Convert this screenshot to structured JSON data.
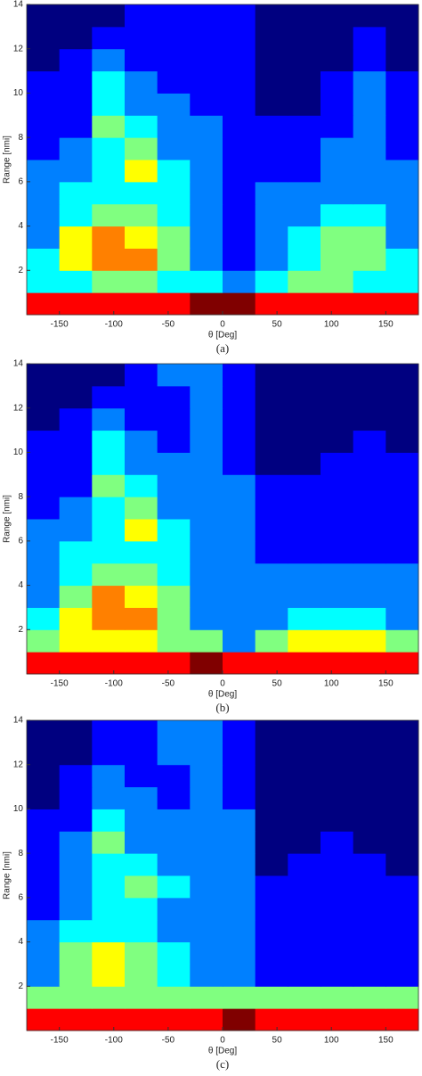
{
  "chart_data": [
    {
      "type": "heatmap",
      "caption": "(a)",
      "xlabel": "θ [Deg]",
      "ylabel": "Range [nmi]",
      "colormap": "jet",
      "xlim": [
        -180,
        180
      ],
      "ylim": [
        0,
        14
      ],
      "xticks": [
        -150,
        -100,
        -50,
        0,
        50,
        100,
        150
      ],
      "yticks": [
        2,
        4,
        6,
        8,
        10,
        12,
        14
      ],
      "xbins": [
        -180,
        -150,
        -120,
        -90,
        -60,
        -30,
        0,
        30,
        60,
        90,
        120,
        150,
        180
      ],
      "ybins": [
        0,
        1,
        2,
        3,
        4,
        5,
        6,
        7,
        8,
        9,
        10,
        11,
        12,
        13,
        14
      ],
      "z": [
        [
          8,
          8,
          8,
          8,
          8,
          9,
          9,
          8,
          8,
          8,
          8,
          8
        ],
        [
          4,
          4,
          5,
          5,
          4,
          4,
          3,
          4,
          5,
          5,
          4,
          4
        ],
        [
          4,
          6,
          7,
          7,
          5,
          3,
          2,
          3,
          4,
          5,
          5,
          4
        ],
        [
          3,
          6,
          7,
          6,
          5,
          3,
          2,
          3,
          4,
          5,
          5,
          3
        ],
        [
          3,
          4,
          5,
          5,
          4,
          3,
          2,
          3,
          3,
          4,
          4,
          3
        ],
        [
          3,
          4,
          4,
          4,
          4,
          3,
          2,
          3,
          3,
          3,
          3,
          3
        ],
        [
          3,
          3,
          4,
          6,
          4,
          3,
          2,
          2,
          2,
          3,
          3,
          3
        ],
        [
          2,
          3,
          4,
          5,
          3,
          3,
          2,
          2,
          2,
          3,
          3,
          2
        ],
        [
          2,
          2,
          5,
          4,
          3,
          3,
          2,
          2,
          2,
          2,
          3,
          2
        ],
        [
          2,
          2,
          4,
          3,
          3,
          2,
          2,
          1,
          1,
          2,
          3,
          2
        ],
        [
          2,
          2,
          4,
          3,
          2,
          2,
          2,
          1,
          1,
          2,
          3,
          2
        ],
        [
          1,
          2,
          3,
          2,
          2,
          2,
          2,
          1,
          1,
          1,
          2,
          1
        ],
        [
          1,
          1,
          2,
          2,
          2,
          2,
          2,
          1,
          1,
          1,
          2,
          1
        ],
        [
          1,
          1,
          1,
          2,
          2,
          2,
          2,
          1,
          1,
          1,
          1,
          1
        ]
      ]
    },
    {
      "type": "heatmap",
      "caption": "(b)",
      "xlabel": "θ [Deg]",
      "ylabel": "Range [nmi]",
      "colormap": "jet",
      "xlim": [
        -180,
        180
      ],
      "ylim": [
        0,
        14
      ],
      "xticks": [
        -150,
        -100,
        -50,
        0,
        50,
        100,
        150
      ],
      "yticks": [
        2,
        4,
        6,
        8,
        10,
        12,
        14
      ],
      "xbins": [
        -180,
        -150,
        -120,
        -90,
        -60,
        -30,
        0,
        30,
        60,
        90,
        120,
        150,
        180
      ],
      "ybins": [
        0,
        1,
        2,
        3,
        4,
        5,
        6,
        7,
        8,
        9,
        10,
        11,
        12,
        13,
        14
      ],
      "z": [
        [
          8,
          8,
          8,
          8,
          8,
          9,
          8,
          8,
          8,
          8,
          8,
          8
        ],
        [
          5,
          6,
          6,
          6,
          5,
          5,
          3,
          5,
          6,
          6,
          6,
          5
        ],
        [
          4,
          6,
          7,
          7,
          5,
          3,
          3,
          3,
          4,
          4,
          4,
          3
        ],
        [
          3,
          5,
          7,
          6,
          5,
          3,
          3,
          3,
          3,
          3,
          3,
          3
        ],
        [
          3,
          4,
          5,
          5,
          4,
          3,
          3,
          3,
          3,
          3,
          3,
          3
        ],
        [
          3,
          4,
          4,
          4,
          4,
          3,
          3,
          2,
          2,
          2,
          2,
          2
        ],
        [
          3,
          3,
          4,
          6,
          4,
          3,
          3,
          2,
          2,
          2,
          2,
          2
        ],
        [
          2,
          3,
          4,
          5,
          3,
          3,
          3,
          2,
          2,
          2,
          2,
          2
        ],
        [
          2,
          2,
          5,
          4,
          3,
          3,
          3,
          2,
          2,
          2,
          2,
          2
        ],
        [
          2,
          2,
          4,
          3,
          3,
          3,
          2,
          1,
          1,
          2,
          2,
          2
        ],
        [
          2,
          2,
          4,
          3,
          2,
          3,
          2,
          1,
          1,
          1,
          2,
          1
        ],
        [
          1,
          2,
          3,
          2,
          2,
          3,
          2,
          1,
          1,
          1,
          1,
          1
        ],
        [
          1,
          1,
          2,
          2,
          2,
          3,
          2,
          1,
          1,
          1,
          1,
          1
        ],
        [
          1,
          1,
          1,
          2,
          3,
          3,
          2,
          1,
          1,
          1,
          1,
          1
        ]
      ]
    },
    {
      "type": "heatmap",
      "caption": "(c)",
      "xlabel": "θ [Deg]",
      "ylabel": "Range [nmi]",
      "colormap": "jet",
      "xlim": [
        -180,
        180
      ],
      "ylim": [
        0,
        14
      ],
      "xticks": [
        -150,
        -100,
        -50,
        0,
        50,
        100,
        150
      ],
      "yticks": [
        2,
        4,
        6,
        8,
        10,
        12,
        14
      ],
      "xbins": [
        -180,
        -150,
        -120,
        -90,
        -60,
        -30,
        0,
        30,
        60,
        90,
        120,
        150,
        180
      ],
      "ybins": [
        0,
        1,
        2,
        3,
        4,
        5,
        6,
        7,
        8,
        9,
        10,
        11,
        12,
        13,
        14
      ],
      "z": [
        [
          8,
          8,
          8,
          8,
          8,
          8,
          9,
          8,
          8,
          8,
          8,
          8
        ],
        [
          5,
          5,
          5,
          5,
          5,
          5,
          5,
          5,
          5,
          5,
          5,
          5
        ],
        [
          3,
          5,
          6,
          5,
          4,
          3,
          3,
          2,
          2,
          2,
          2,
          2
        ],
        [
          3,
          5,
          6,
          5,
          4,
          3,
          3,
          2,
          2,
          2,
          2,
          2
        ],
        [
          3,
          4,
          4,
          4,
          3,
          3,
          3,
          2,
          2,
          2,
          2,
          2
        ],
        [
          2,
          3,
          4,
          4,
          3,
          3,
          3,
          2,
          2,
          2,
          2,
          2
        ],
        [
          2,
          3,
          4,
          5,
          4,
          3,
          3,
          2,
          2,
          2,
          2,
          2
        ],
        [
          2,
          3,
          4,
          4,
          3,
          3,
          3,
          1,
          2,
          2,
          2,
          1
        ],
        [
          2,
          3,
          5,
          3,
          3,
          3,
          3,
          1,
          1,
          2,
          1,
          1
        ],
        [
          2,
          2,
          4,
          3,
          3,
          3,
          3,
          1,
          1,
          1,
          1,
          1
        ],
        [
          1,
          2,
          3,
          3,
          2,
          3,
          2,
          1,
          1,
          1,
          1,
          1
        ],
        [
          1,
          2,
          3,
          2,
          2,
          3,
          2,
          1,
          1,
          1,
          1,
          1
        ],
        [
          1,
          1,
          2,
          2,
          3,
          3,
          2,
          1,
          1,
          1,
          1,
          1
        ],
        [
          1,
          1,
          2,
          2,
          3,
          3,
          2,
          1,
          1,
          1,
          1,
          1
        ]
      ]
    }
  ]
}
